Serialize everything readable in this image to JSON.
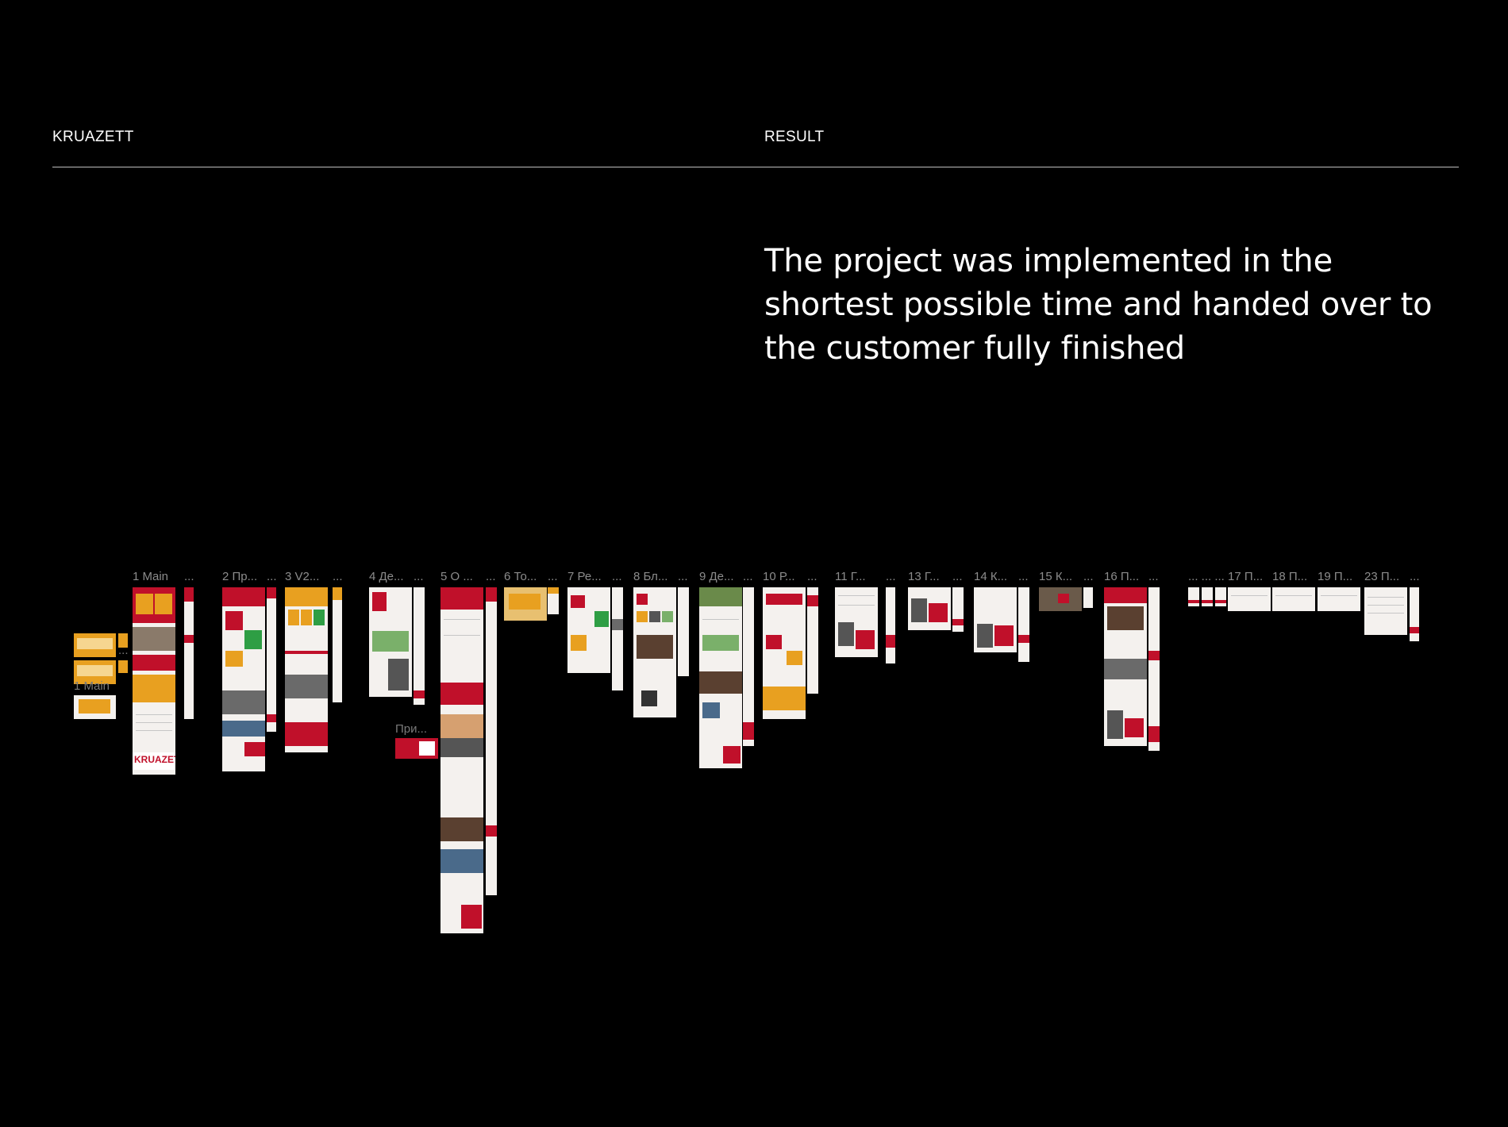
{
  "header": {
    "brand": "KRUAZETT",
    "section": "RESULT"
  },
  "result": {
    "text": "The project was implemented in the shortest possible time and handed over to the customer fully finished"
  },
  "canvas": {
    "frame_labels": [
      "1 Main",
      "...",
      "2 Пр...",
      "...",
      "3 V2...",
      "...",
      "4 Де...",
      "...",
      "5 О ...",
      "...",
      "6 То...",
      "...",
      "7 Ре...",
      "...",
      "8 Бл...",
      "...",
      "9 Де...",
      "...",
      "10 Р...",
      "...",
      "11 Г...",
      "...",
      "13 Г...",
      "...",
      "14 К...",
      "...",
      "15 К...",
      "...",
      "16 П...",
      "...",
      "... ... ...",
      "17 П...",
      "18 П...",
      "19 П...",
      "23 П...",
      "..."
    ],
    "side_label": "1 Main",
    "side_dots": "...",
    "popup_label": "При...",
    "logo_text": "KRUAZETT"
  },
  "colors": {
    "background": "#000000",
    "brand_red": "#c0102a",
    "orange": "#e8a020",
    "green": "#2e9e44",
    "page": "#f4f1ee"
  }
}
